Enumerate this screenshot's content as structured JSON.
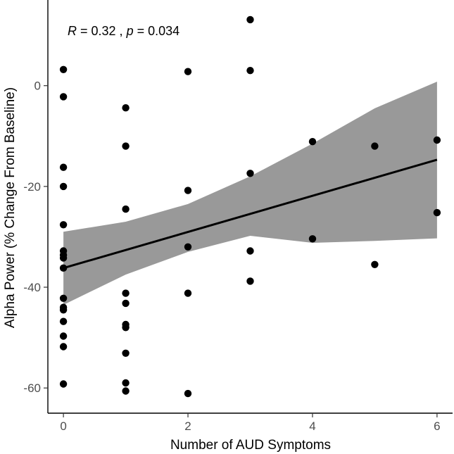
{
  "chart_data": {
    "type": "scatter",
    "xlabel": "Number of AUD Symptoms",
    "ylabel": "Alpha Power (% Change From Baseline)",
    "xlim": [
      -0.25,
      6.25
    ],
    "ylim": [
      -65,
      17
    ],
    "x_ticks": [
      0,
      2,
      4,
      6
    ],
    "y_ticks": [
      -60,
      -40,
      -20,
      0
    ],
    "x_tick_labels": [
      "0",
      "2",
      "4",
      "6"
    ],
    "y_tick_labels": [
      "-60",
      "-40",
      "-20",
      "0"
    ],
    "grid": false,
    "annotation": {
      "r_symbol": "R",
      "r_text": " = 0.32 , ",
      "p_symbol": "p",
      "p_text": " = 0.034"
    },
    "points": [
      {
        "x": 0,
        "y": 3.2
      },
      {
        "x": 0,
        "y": -2.2
      },
      {
        "x": 0,
        "y": -16.2
      },
      {
        "x": 0,
        "y": -20.0
      },
      {
        "x": 0,
        "y": -27.6
      },
      {
        "x": 0,
        "y": -32.8
      },
      {
        "x": 0,
        "y": -33.6
      },
      {
        "x": 0,
        "y": -34.2
      },
      {
        "x": 0,
        "y": -36.2
      },
      {
        "x": 0,
        "y": -42.2
      },
      {
        "x": 0,
        "y": -44.0
      },
      {
        "x": 0,
        "y": -44.5
      },
      {
        "x": 0,
        "y": -46.8
      },
      {
        "x": 0,
        "y": -49.7
      },
      {
        "x": 0,
        "y": -51.8
      },
      {
        "x": 0,
        "y": -59.2
      },
      {
        "x": 1,
        "y": -4.4
      },
      {
        "x": 1,
        "y": -12.0
      },
      {
        "x": 1,
        "y": -24.5
      },
      {
        "x": 1,
        "y": -41.2
      },
      {
        "x": 1,
        "y": -43.2
      },
      {
        "x": 1,
        "y": -47.4
      },
      {
        "x": 1,
        "y": -48.0
      },
      {
        "x": 1,
        "y": -53.1
      },
      {
        "x": 1,
        "y": -59.0
      },
      {
        "x": 1,
        "y": -60.6
      },
      {
        "x": 2,
        "y": 2.8
      },
      {
        "x": 2,
        "y": -20.8
      },
      {
        "x": 2,
        "y": -32.0
      },
      {
        "x": 2,
        "y": -41.2
      },
      {
        "x": 2,
        "y": -61.1
      },
      {
        "x": 3,
        "y": 13.1
      },
      {
        "x": 3,
        "y": 3.0
      },
      {
        "x": 3,
        "y": -17.4
      },
      {
        "x": 3,
        "y": -32.8
      },
      {
        "x": 3,
        "y": -38.8
      },
      {
        "x": 4,
        "y": -11.1
      },
      {
        "x": 4,
        "y": -30.4
      },
      {
        "x": 5,
        "y": -12.0
      },
      {
        "x": 5,
        "y": -35.5
      },
      {
        "x": 6,
        "y": -10.8
      },
      {
        "x": 6,
        "y": -25.2
      }
    ],
    "regression": {
      "x": [
        0,
        6
      ],
      "y": [
        -36.2,
        -14.7
      ]
    },
    "confidence_band": {
      "x": [
        0,
        1,
        2,
        3,
        4,
        5,
        6
      ],
      "upper": [
        -29.0,
        -27.0,
        -23.5,
        -18.0,
        -11.5,
        -4.5,
        0.8
      ],
      "lower": [
        -43.5,
        -37.5,
        -33.0,
        -29.8,
        -31.2,
        -30.8,
        -30.3
      ]
    },
    "colors": {
      "points": "#000000",
      "regression_line": "#000000",
      "band_fill": "#999999"
    }
  }
}
